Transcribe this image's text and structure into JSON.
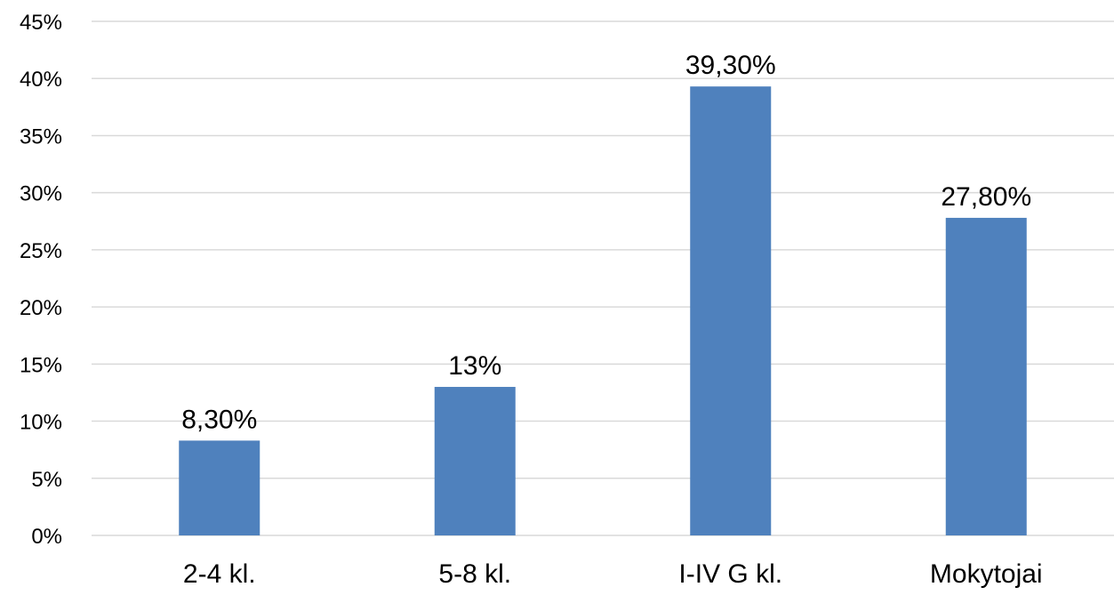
{
  "chart_data": {
    "type": "bar",
    "categories": [
      "2-4 kl.",
      "5-8 kl.",
      "I-IV G kl.",
      "Mokytojai"
    ],
    "values": [
      8.3,
      13,
      39.3,
      27.8
    ],
    "data_labels": [
      "8,30%",
      "13%",
      "39,30%",
      "27,80%"
    ],
    "title": "",
    "xlabel": "",
    "ylabel": "",
    "ylim": [
      0,
      45
    ],
    "y_ticks": [
      0,
      5,
      10,
      15,
      20,
      25,
      30,
      35,
      40,
      45
    ],
    "y_tick_labels": [
      "0%",
      "5%",
      "10%",
      "15%",
      "20%",
      "25%",
      "30%",
      "35%",
      "40%",
      "45%"
    ],
    "grid": true,
    "legend": "none",
    "bar_color": "#4f81bd",
    "grid_color": "#d9d9d9"
  }
}
